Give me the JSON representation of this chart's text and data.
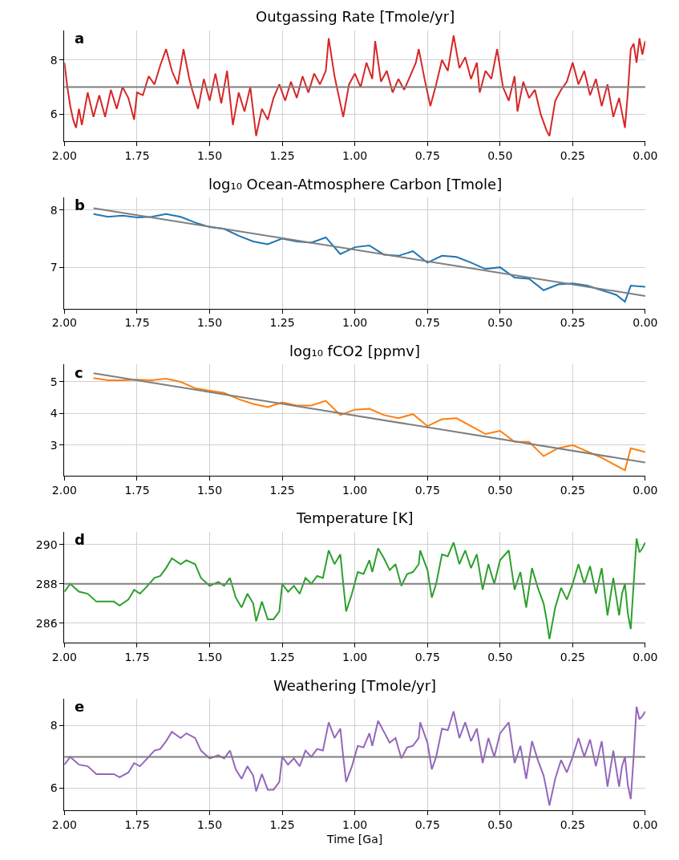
{
  "chart_data": [
    {
      "type": "line",
      "title": "Outgassing Rate [Tmole/yr]",
      "annotations": [
        "a"
      ],
      "xlim": [
        2.0,
        0.0
      ],
      "xticks": [
        {
          "value": 2.0,
          "label": "2.00"
        },
        {
          "value": 1.75,
          "label": "1.75"
        },
        {
          "value": 1.5,
          "label": "1.50"
        },
        {
          "value": 1.25,
          "label": "1.25"
        },
        {
          "value": 1.0,
          "label": "1.00"
        },
        {
          "value": 0.75,
          "label": "0.75"
        },
        {
          "value": 0.5,
          "label": "0.50"
        },
        {
          "value": 0.25,
          "label": "0.25"
        },
        {
          "value": 0.0,
          "label": "0.00"
        }
      ],
      "ylim": [
        5.0,
        9.1
      ],
      "yticks": [
        6,
        8
      ],
      "grid": true,
      "ref_lines": [
        {
          "axis": "y",
          "value": 7,
          "color": "#7f7f7f"
        }
      ],
      "series": [
        {
          "type": "line",
          "color": "#d62728",
          "x": [
            2.0,
            1.99,
            1.98,
            1.97,
            1.96,
            1.95,
            1.94,
            1.92,
            1.9,
            1.88,
            1.86,
            1.84,
            1.82,
            1.8,
            1.78,
            1.76,
            1.75,
            1.73,
            1.71,
            1.69,
            1.67,
            1.65,
            1.63,
            1.61,
            1.59,
            1.57,
            1.56,
            1.54,
            1.52,
            1.5,
            1.48,
            1.46,
            1.44,
            1.42,
            1.4,
            1.38,
            1.36,
            1.34,
            1.32,
            1.3,
            1.28,
            1.26,
            1.24,
            1.22,
            1.2,
            1.18,
            1.16,
            1.14,
            1.12,
            1.1,
            1.09,
            1.07,
            1.05,
            1.04,
            1.02,
            1.0,
            0.98,
            0.96,
            0.94,
            0.93,
            0.91,
            0.89,
            0.87,
            0.85,
            0.83,
            0.81,
            0.79,
            0.78,
            0.76,
            0.74,
            0.72,
            0.7,
            0.68,
            0.66,
            0.64,
            0.62,
            0.6,
            0.58,
            0.57,
            0.55,
            0.53,
            0.51,
            0.49,
            0.47,
            0.45,
            0.44,
            0.42,
            0.4,
            0.38,
            0.36,
            0.34,
            0.33,
            0.31,
            0.29,
            0.27,
            0.25,
            0.23,
            0.21,
            0.19,
            0.17,
            0.15,
            0.13,
            0.11,
            0.09,
            0.07,
            0.06,
            0.05,
            0.04,
            0.03,
            0.02,
            0.01,
            0.0
          ],
          "values": [
            7.9,
            7.0,
            6.3,
            5.8,
            5.5,
            6.2,
            5.6,
            6.8,
            5.9,
            6.7,
            5.9,
            6.9,
            6.2,
            7.0,
            6.6,
            5.8,
            6.8,
            6.7,
            7.4,
            7.1,
            7.8,
            8.4,
            7.6,
            7.1,
            8.4,
            7.3,
            6.9,
            6.2,
            7.3,
            6.5,
            7.5,
            6.4,
            7.6,
            5.6,
            6.8,
            6.1,
            7.0,
            5.2,
            6.2,
            5.8,
            6.6,
            7.1,
            6.5,
            7.2,
            6.6,
            7.4,
            6.8,
            7.5,
            7.1,
            7.6,
            8.8,
            7.4,
            6.4,
            5.9,
            7.1,
            7.5,
            7.0,
            7.9,
            7.3,
            8.7,
            7.2,
            7.6,
            6.8,
            7.3,
            6.9,
            7.4,
            7.9,
            8.4,
            7.3,
            6.3,
            7.1,
            8.0,
            7.6,
            8.9,
            7.7,
            8.1,
            7.3,
            7.9,
            6.8,
            7.6,
            7.3,
            8.4,
            7.0,
            6.5,
            7.4,
            6.1,
            7.2,
            6.6,
            6.9,
            6.0,
            5.4,
            5.2,
            6.5,
            6.9,
            7.2,
            7.9,
            7.1,
            7.6,
            6.7,
            7.3,
            6.3,
            7.1,
            5.9,
            6.6,
            5.5,
            6.8,
            8.4,
            8.6,
            7.9,
            8.8,
            8.2,
            8.7
          ]
        }
      ]
    },
    {
      "type": "line",
      "title": "log₁₀ Ocean-Atmosphere Carbon [Tmole]",
      "annotations": [
        "b"
      ],
      "xlim": [
        2.0,
        0.0
      ],
      "xticks": [
        {
          "value": 2.0,
          "label": "2.00"
        },
        {
          "value": 1.75,
          "label": "1.75"
        },
        {
          "value": 1.5,
          "label": "1.50"
        },
        {
          "value": 1.25,
          "label": "1.25"
        },
        {
          "value": 1.0,
          "label": "1.00"
        },
        {
          "value": 0.75,
          "label": "0.75"
        },
        {
          "value": 0.5,
          "label": "0.50"
        },
        {
          "value": 0.25,
          "label": "0.25"
        },
        {
          "value": 0.0,
          "label": "0.00"
        }
      ],
      "ylim": [
        6.28,
        8.22
      ],
      "yticks": [
        7,
        8
      ],
      "grid": true,
      "series": [
        {
          "type": "line",
          "color": "#1f77b4",
          "x": [
            1.9,
            1.85,
            1.8,
            1.75,
            1.7,
            1.65,
            1.6,
            1.55,
            1.5,
            1.45,
            1.4,
            1.35,
            1.3,
            1.25,
            1.2,
            1.15,
            1.1,
            1.05,
            1.0,
            0.95,
            0.9,
            0.85,
            0.8,
            0.75,
            0.7,
            0.65,
            0.6,
            0.55,
            0.5,
            0.45,
            0.4,
            0.35,
            0.3,
            0.25,
            0.2,
            0.15,
            0.1,
            0.07,
            0.05,
            0.0
          ],
          "values": [
            7.93,
            7.88,
            7.9,
            7.87,
            7.88,
            7.93,
            7.88,
            7.78,
            7.7,
            7.67,
            7.55,
            7.45,
            7.4,
            7.5,
            7.45,
            7.43,
            7.52,
            7.23,
            7.35,
            7.38,
            7.22,
            7.2,
            7.28,
            7.08,
            7.2,
            7.18,
            7.08,
            6.97,
            7.0,
            6.82,
            6.8,
            6.6,
            6.7,
            6.72,
            6.68,
            6.6,
            6.52,
            6.4,
            6.68,
            6.66
          ]
        },
        {
          "type": "line",
          "color": "#7f7f7f",
          "x": [
            1.9,
            0.0
          ],
          "values": [
            8.03,
            6.5
          ]
        }
      ]
    },
    {
      "type": "line",
      "title": "log₁₀ fCO2 [ppmv]",
      "annotations": [
        "c"
      ],
      "xlim": [
        2.0,
        0.0
      ],
      "xticks": [
        {
          "value": 2.0,
          "label": "2.00"
        },
        {
          "value": 1.75,
          "label": "1.75"
        },
        {
          "value": 1.5,
          "label": "1.50"
        },
        {
          "value": 1.25,
          "label": "1.25"
        },
        {
          "value": 1.0,
          "label": "1.00"
        },
        {
          "value": 0.75,
          "label": "0.75"
        },
        {
          "value": 0.5,
          "label": "0.50"
        },
        {
          "value": 0.25,
          "label": "0.25"
        },
        {
          "value": 0.0,
          "label": "0.00"
        }
      ],
      "ylim": [
        2.03,
        5.55
      ],
      "yticks": [
        3,
        4,
        5
      ],
      "grid": true,
      "series": [
        {
          "type": "line",
          "color": "#ff7f0e",
          "x": [
            1.9,
            1.85,
            1.8,
            1.75,
            1.7,
            1.65,
            1.6,
            1.55,
            1.5,
            1.45,
            1.4,
            1.35,
            1.3,
            1.25,
            1.2,
            1.15,
            1.1,
            1.05,
            1.0,
            0.95,
            0.9,
            0.85,
            0.8,
            0.75,
            0.7,
            0.65,
            0.6,
            0.55,
            0.5,
            0.45,
            0.4,
            0.35,
            0.3,
            0.25,
            0.2,
            0.15,
            0.1,
            0.07,
            0.05,
            0.0
          ],
          "values": [
            5.12,
            5.05,
            5.05,
            5.07,
            5.05,
            5.1,
            5.0,
            4.8,
            4.72,
            4.65,
            4.45,
            4.3,
            4.2,
            4.35,
            4.25,
            4.25,
            4.4,
            3.95,
            4.12,
            4.15,
            3.95,
            3.85,
            3.98,
            3.6,
            3.82,
            3.85,
            3.6,
            3.35,
            3.45,
            3.1,
            3.1,
            2.65,
            2.9,
            3.0,
            2.8,
            2.6,
            2.35,
            2.2,
            2.9,
            2.78
          ]
        },
        {
          "type": "line",
          "color": "#7f7f7f",
          "x": [
            1.9,
            0.0
          ],
          "values": [
            5.27,
            2.45
          ]
        }
      ]
    },
    {
      "type": "line",
      "title": "Temperature [K]",
      "annotations": [
        "d"
      ],
      "xlim": [
        2.0,
        0.0
      ],
      "xticks": [
        {
          "value": 2.0,
          "label": "2.00"
        },
        {
          "value": 1.75,
          "label": "1.75"
        },
        {
          "value": 1.5,
          "label": "1.50"
        },
        {
          "value": 1.25,
          "label": "1.25"
        },
        {
          "value": 1.0,
          "label": "1.00"
        },
        {
          "value": 0.75,
          "label": "0.75"
        },
        {
          "value": 0.5,
          "label": "0.50"
        },
        {
          "value": 0.25,
          "label": "0.25"
        },
        {
          "value": 0.0,
          "label": "0.00"
        }
      ],
      "ylim": [
        285.0,
        290.65
      ],
      "yticks": [
        286,
        288,
        290
      ],
      "grid": true,
      "ref_lines": [
        {
          "axis": "y",
          "value": 288,
          "color": "#7f7f7f"
        }
      ],
      "series": [
        {
          "type": "line",
          "color": "#2ca02c",
          "x": [
            2.0,
            1.98,
            1.95,
            1.92,
            1.89,
            1.86,
            1.83,
            1.81,
            1.78,
            1.76,
            1.74,
            1.72,
            1.69,
            1.67,
            1.65,
            1.63,
            1.6,
            1.58,
            1.55,
            1.53,
            1.5,
            1.47,
            1.45,
            1.43,
            1.41,
            1.39,
            1.37,
            1.35,
            1.34,
            1.32,
            1.3,
            1.28,
            1.26,
            1.25,
            1.23,
            1.21,
            1.19,
            1.17,
            1.15,
            1.13,
            1.11,
            1.09,
            1.07,
            1.05,
            1.04,
            1.03,
            1.01,
            0.99,
            0.97,
            0.95,
            0.94,
            0.92,
            0.9,
            0.88,
            0.86,
            0.84,
            0.82,
            0.8,
            0.78,
            0.775,
            0.75,
            0.735,
            0.72,
            0.7,
            0.68,
            0.66,
            0.64,
            0.62,
            0.6,
            0.58,
            0.56,
            0.54,
            0.52,
            0.5,
            0.47,
            0.45,
            0.43,
            0.41,
            0.39,
            0.37,
            0.35,
            0.34,
            0.33,
            0.31,
            0.29,
            0.27,
            0.25,
            0.23,
            0.21,
            0.19,
            0.17,
            0.15,
            0.13,
            0.11,
            0.09,
            0.08,
            0.07,
            0.06,
            0.05,
            0.04,
            0.03,
            0.02,
            0.01,
            0.0
          ],
          "values": [
            287.6,
            288.0,
            287.6,
            287.5,
            287.1,
            287.1,
            287.1,
            286.9,
            287.2,
            287.7,
            287.5,
            287.8,
            288.3,
            288.4,
            288.8,
            289.3,
            289.0,
            289.2,
            289.0,
            288.3,
            287.9,
            288.1,
            287.9,
            288.3,
            287.3,
            286.8,
            287.5,
            287.0,
            286.1,
            287.1,
            286.2,
            286.2,
            286.6,
            288.0,
            287.6,
            287.9,
            287.5,
            288.3,
            288.0,
            288.4,
            288.3,
            289.7,
            289.0,
            289.5,
            288.0,
            286.6,
            287.5,
            288.6,
            288.5,
            289.2,
            288.6,
            289.8,
            289.3,
            288.7,
            289.0,
            287.9,
            288.5,
            288.6,
            289.0,
            289.7,
            288.7,
            287.3,
            288.0,
            289.5,
            289.4,
            290.1,
            289.0,
            289.7,
            288.8,
            289.5,
            287.7,
            289.0,
            288.0,
            289.2,
            289.7,
            287.7,
            288.6,
            286.8,
            288.8,
            287.8,
            287.0,
            286.2,
            285.2,
            286.8,
            287.8,
            287.2,
            288.0,
            289.0,
            288.0,
            288.9,
            287.5,
            288.8,
            286.4,
            288.3,
            286.4,
            287.5,
            288.0,
            286.5,
            285.7,
            288.0,
            290.3,
            289.6,
            289.8,
            290.1
          ]
        }
      ]
    },
    {
      "type": "line",
      "title": "Weathering [Tmole/yr]",
      "xlabel": "Time [Ga]",
      "annotations": [
        "e"
      ],
      "xlim": [
        2.0,
        0.0
      ],
      "xticks": [
        {
          "value": 2.0,
          "label": "2.00"
        },
        {
          "value": 1.75,
          "label": "1.75"
        },
        {
          "value": 1.5,
          "label": "1.50"
        },
        {
          "value": 1.25,
          "label": "1.25"
        },
        {
          "value": 1.0,
          "label": "1.00"
        },
        {
          "value": 0.75,
          "label": "0.75"
        },
        {
          "value": 0.5,
          "label": "0.50"
        },
        {
          "value": 0.25,
          "label": "0.25"
        },
        {
          "value": 0.0,
          "label": "0.00"
        }
      ],
      "ylim": [
        5.3,
        8.85
      ],
      "yticks": [
        6,
        8
      ],
      "grid": true,
      "ref_lines": [
        {
          "axis": "y",
          "value": 7,
          "color": "#7f7f7f"
        }
      ],
      "series": [
        {
          "type": "line",
          "color": "#9467bd",
          "x": [
            2.0,
            1.98,
            1.95,
            1.92,
            1.89,
            1.86,
            1.83,
            1.81,
            1.78,
            1.76,
            1.74,
            1.72,
            1.69,
            1.67,
            1.65,
            1.63,
            1.6,
            1.58,
            1.55,
            1.53,
            1.5,
            1.47,
            1.45,
            1.43,
            1.41,
            1.39,
            1.37,
            1.35,
            1.34,
            1.32,
            1.3,
            1.28,
            1.26,
            1.25,
            1.23,
            1.21,
            1.19,
            1.17,
            1.15,
            1.13,
            1.11,
            1.09,
            1.07,
            1.05,
            1.04,
            1.03,
            1.01,
            0.99,
            0.97,
            0.95,
            0.94,
            0.92,
            0.9,
            0.88,
            0.86,
            0.84,
            0.82,
            0.8,
            0.78,
            0.775,
            0.75,
            0.735,
            0.72,
            0.7,
            0.68,
            0.66,
            0.64,
            0.62,
            0.6,
            0.58,
            0.56,
            0.54,
            0.52,
            0.5,
            0.47,
            0.45,
            0.43,
            0.41,
            0.39,
            0.37,
            0.35,
            0.34,
            0.33,
            0.31,
            0.29,
            0.27,
            0.25,
            0.23,
            0.21,
            0.19,
            0.17,
            0.15,
            0.13,
            0.11,
            0.09,
            0.08,
            0.07,
            0.06,
            0.05,
            0.04,
            0.03,
            0.02,
            0.01,
            0.0
          ],
          "values": [
            6.75,
            7.0,
            6.75,
            6.7,
            6.45,
            6.45,
            6.45,
            6.35,
            6.5,
            6.8,
            6.7,
            6.9,
            7.2,
            7.25,
            7.5,
            7.8,
            7.6,
            7.75,
            7.6,
            7.2,
            6.95,
            7.05,
            6.95,
            7.2,
            6.6,
            6.3,
            6.7,
            6.4,
            5.9,
            6.45,
            5.95,
            5.95,
            6.2,
            7.0,
            6.75,
            6.95,
            6.7,
            7.2,
            7.0,
            7.25,
            7.2,
            8.1,
            7.6,
            7.9,
            7.0,
            6.2,
            6.7,
            7.35,
            7.3,
            7.75,
            7.35,
            8.15,
            7.8,
            7.45,
            7.6,
            6.95,
            7.3,
            7.35,
            7.6,
            8.1,
            7.45,
            6.6,
            7.0,
            7.9,
            7.85,
            8.45,
            7.6,
            8.1,
            7.5,
            7.9,
            6.8,
            7.6,
            7.0,
            7.75,
            8.1,
            6.8,
            7.35,
            6.3,
            7.5,
            6.9,
            6.4,
            5.95,
            5.45,
            6.3,
            6.9,
            6.5,
            7.0,
            7.6,
            7.0,
            7.55,
            6.7,
            7.5,
            6.05,
            7.2,
            6.05,
            6.7,
            7.0,
            6.1,
            5.65,
            7.0,
            8.6,
            8.2,
            8.3,
            8.45
          ]
        }
      ]
    }
  ]
}
